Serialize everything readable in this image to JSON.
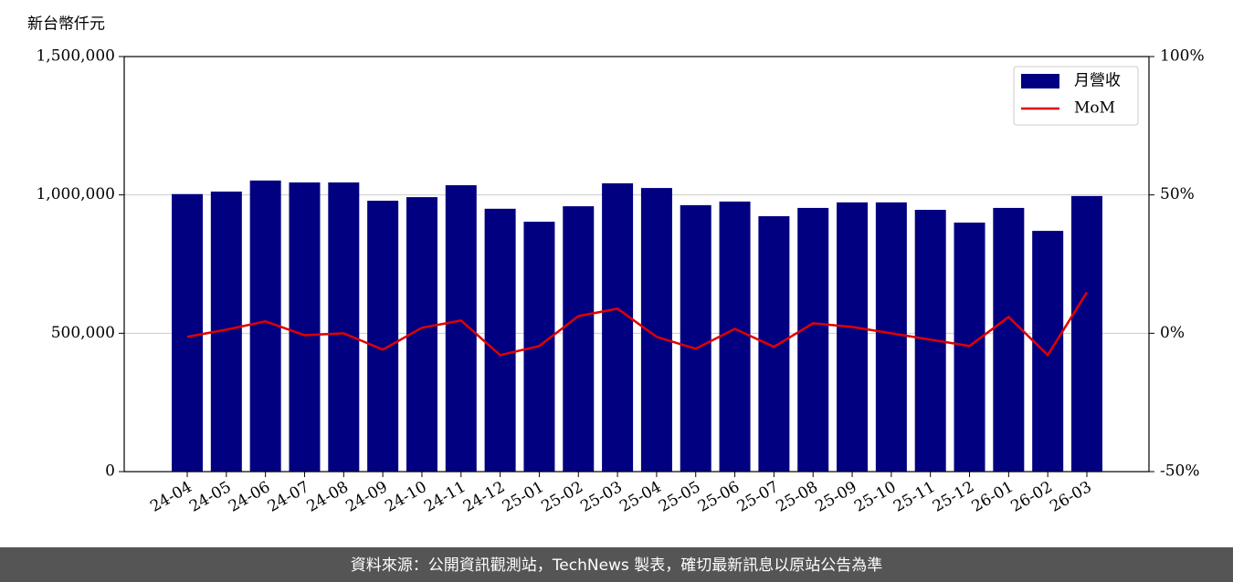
{
  "chart_data": {
    "type": "bar",
    "y_label": "新台幣仟元",
    "categories": [
      "24-04",
      "24-05",
      "24-06",
      "24-07",
      "24-08",
      "24-09",
      "24-10",
      "24-11",
      "24-12",
      "25-01",
      "25-02",
      "25-03",
      "25-04",
      "25-05",
      "25-06",
      "25-07",
      "25-08",
      "25-09",
      "25-10",
      "25-11",
      "25-12",
      "26-01",
      "26-02",
      "26-03"
    ],
    "series": [
      {
        "name": "月營收",
        "type": "bar",
        "color": "#000080",
        "values": [
          1003000,
          1012000,
          1052000,
          1045000,
          1045000,
          979000,
          992000,
          1035000,
          950000,
          903000,
          959000,
          1042000,
          1025000,
          963000,
          976000,
          923000,
          953000,
          973000,
          973000,
          946000,
          900000,
          953000,
          870000,
          996000
        ]
      },
      {
        "name": "MoM",
        "type": "line",
        "axis": "y2",
        "color": "#e00000",
        "values": [
          -1.3,
          1.3,
          4.3,
          -0.7,
          0,
          -5.9,
          2.0,
          4.6,
          -7.9,
          -4.6,
          6.2,
          8.9,
          -1.3,
          -5.6,
          1.6,
          -4.9,
          3.6,
          2.3,
          0,
          -2.3,
          -4.6,
          5.9,
          -7.9,
          14.8
        ]
      }
    ],
    "ylim": [
      0,
      1500000
    ],
    "yticks": [
      0,
      {
        "value": 500000,
        "label": "500,000"
      },
      {
        "value": 1000000,
        "label": "1,000,000"
      },
      {
        "value": 1500000,
        "label": "1,500,000"
      }
    ],
    "y2lim": [
      -50,
      100
    ],
    "y2ticks": [
      {
        "value": -50,
        "label": "-50%"
      },
      {
        "value": 0,
        "label": "0%"
      },
      {
        "value": 50,
        "label": "50%"
      },
      {
        "value": 100,
        "label": "100%"
      }
    ],
    "grid": true,
    "legend": "upper right"
  },
  "footer": "資料來源：公開資訊觀測站，TechNews 製表，確切最新訊息以原站公告為準"
}
